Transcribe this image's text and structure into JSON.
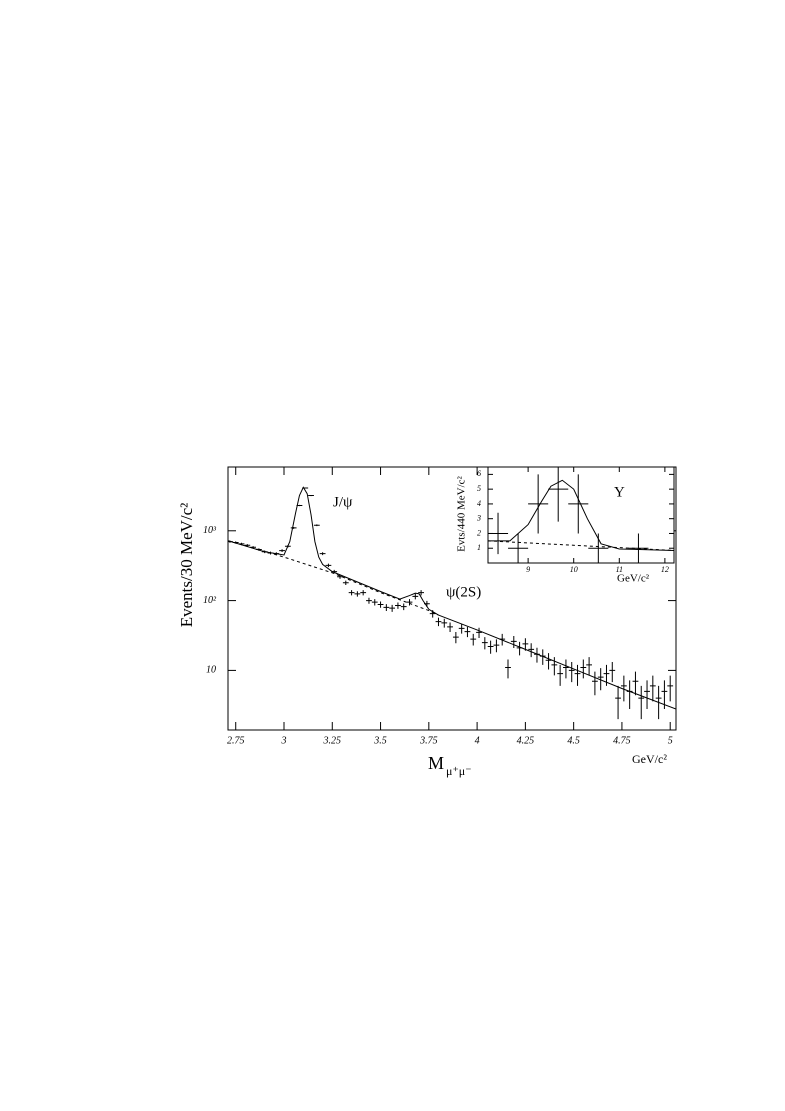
{
  "chart_data": [
    {
      "type": "errorbar",
      "ylabel": "Events/30 MeV/c²",
      "xlabel": {
        "text": "M",
        "sub": "μ⁺μ⁻"
      },
      "xunit": "GeV/c²",
      "annotations": [
        "J/ψ",
        "ψ(2S)"
      ],
      "xlim": [
        2.71,
        5.03
      ],
      "ylim": [
        1.4,
        8200
      ],
      "ylog": true,
      "xticks": [
        2.75,
        3,
        3.25,
        3.5,
        3.75,
        4,
        4.25,
        4.5,
        4.75,
        5
      ],
      "yticks": [
        10,
        {
          "value": 100,
          "label": "10²"
        },
        {
          "value": 1000,
          "label": "10³"
        }
      ],
      "series": [
        {
          "style": "errorbar",
          "color": "#000000",
          "xerr": 0.015,
          "x": [
            2.72,
            2.75,
            2.78,
            2.81,
            2.84,
            2.87,
            2.9,
            2.93,
            2.96,
            2.99,
            3.02,
            3.05,
            3.08,
            3.11,
            3.14,
            3.17,
            3.2,
            3.23,
            3.26,
            3.29,
            3.32,
            3.35,
            3.38,
            3.41,
            3.44,
            3.47,
            3.5,
            3.53,
            3.56,
            3.59,
            3.62,
            3.65,
            3.68,
            3.71,
            3.74,
            3.77,
            3.8,
            3.83,
            3.86,
            3.89,
            3.92,
            3.95,
            3.98,
            4.01,
            4.04,
            4.07,
            4.1,
            4.13,
            4.16,
            4.19,
            4.22,
            4.25,
            4.28,
            4.31,
            4.34,
            4.37,
            4.4,
            4.43,
            4.46,
            4.49,
            4.52,
            4.55,
            4.58,
            4.61,
            4.64,
            4.67,
            4.7,
            4.73,
            4.76,
            4.79,
            4.82,
            4.85,
            4.88,
            4.91,
            4.94,
            4.97,
            5.0
          ],
          "values": [
            700,
            680,
            650,
            620,
            580,
            540,
            500,
            480,
            470,
            520,
            600,
            1100,
            2300,
            4100,
            3200,
            1200,
            470,
            320,
            260,
            220,
            180,
            130,
            125,
            130,
            100,
            95,
            88,
            80,
            78,
            85,
            82,
            95,
            115,
            130,
            90,
            65,
            50,
            48,
            42,
            30,
            40,
            36,
            28,
            35,
            25,
            22,
            23,
            28,
            11,
            26,
            21,
            24,
            20,
            17,
            16,
            14,
            12,
            9,
            11,
            10,
            9,
            11,
            12,
            7,
            8,
            9,
            10,
            4,
            6,
            5,
            7,
            4,
            5,
            6,
            4,
            5,
            6
          ],
          "errors": [
            26,
            26,
            25,
            25,
            24,
            23,
            22,
            22,
            22,
            23,
            24,
            33,
            48,
            64,
            57,
            35,
            22,
            18,
            16,
            15,
            13,
            11,
            11,
            11,
            10,
            10,
            9,
            9,
            9,
            9,
            9,
            10,
            11,
            11,
            9,
            8,
            7,
            7,
            6.5,
            5.5,
            6.3,
            6,
            5.3,
            5.9,
            5,
            4.7,
            4.8,
            5.3,
            3.3,
            5.1,
            4.6,
            4.9,
            4.5,
            4.1,
            4,
            3.7,
            3.5,
            3,
            3.3,
            3.2,
            3,
            3.3,
            3.5,
            2.6,
            2.8,
            3,
            3.2,
            2,
            2.4,
            2.2,
            2.6,
            2,
            2.2,
            2.4,
            2,
            2.2,
            2.4
          ]
        },
        {
          "style": "line",
          "color": "#000000",
          "dash": false,
          "x": [
            2.71,
            2.9,
            3.0,
            3.03,
            3.06,
            3.08,
            3.1,
            3.12,
            3.14,
            3.16,
            3.18,
            3.2,
            3.25,
            3.5,
            3.6,
            3.65,
            3.68,
            3.7,
            3.72,
            3.75,
            3.8,
            4.0,
            4.25,
            4.5,
            4.75,
            5.03
          ],
          "values": [
            720,
            500,
            450,
            700,
            1800,
            3200,
            4200,
            3400,
            1700,
            700,
            420,
            330,
            260,
            135,
            105,
            118,
            128,
            125,
            100,
            75,
            62,
            38,
            20,
            10.5,
            5.5,
            2.8
          ]
        },
        {
          "style": "line",
          "color": "#000000",
          "dash": true,
          "x": [
            2.71,
            3.0,
            3.25,
            3.5,
            3.75,
            3.8
          ],
          "values": [
            720,
            420,
            250,
            130,
            72,
            62
          ]
        }
      ]
    },
    {
      "type": "errorbar",
      "ylabel": "Evts/440 MeV/c²",
      "xunit": "GeV/c²",
      "annotations": [
        "Υ"
      ],
      "xlim": [
        8.12,
        12.2
      ],
      "ylim": [
        0,
        6.5
      ],
      "ylog": false,
      "xticks": [
        9,
        10,
        11,
        12
      ],
      "yticks": [
        1,
        2,
        3,
        4,
        5,
        6
      ],
      "series": [
        {
          "style": "errorbar",
          "color": "#000000",
          "xerr": 0.22,
          "x": [
            8.34,
            8.78,
            9.22,
            9.66,
            10.1,
            10.54,
            11.42
          ],
          "values": [
            2,
            1,
            4,
            5,
            4,
            1,
            1
          ],
          "errors": [
            1.4,
            1,
            2,
            2.2,
            2,
            1,
            1
          ]
        },
        {
          "style": "line",
          "color": "#000000",
          "dash": false,
          "x": [
            8.12,
            8.6,
            9.0,
            9.3,
            9.5,
            9.75,
            10.0,
            10.3,
            10.6,
            11.0,
            12.2
          ],
          "values": [
            1.5,
            1.5,
            2.6,
            4.2,
            5.2,
            5.6,
            5.0,
            3.0,
            1.3,
            0.95,
            0.85
          ]
        },
        {
          "style": "line",
          "color": "#000000",
          "dash": true,
          "x": [
            8.12,
            12.2
          ],
          "values": [
            1.5,
            0.85
          ]
        }
      ]
    }
  ]
}
